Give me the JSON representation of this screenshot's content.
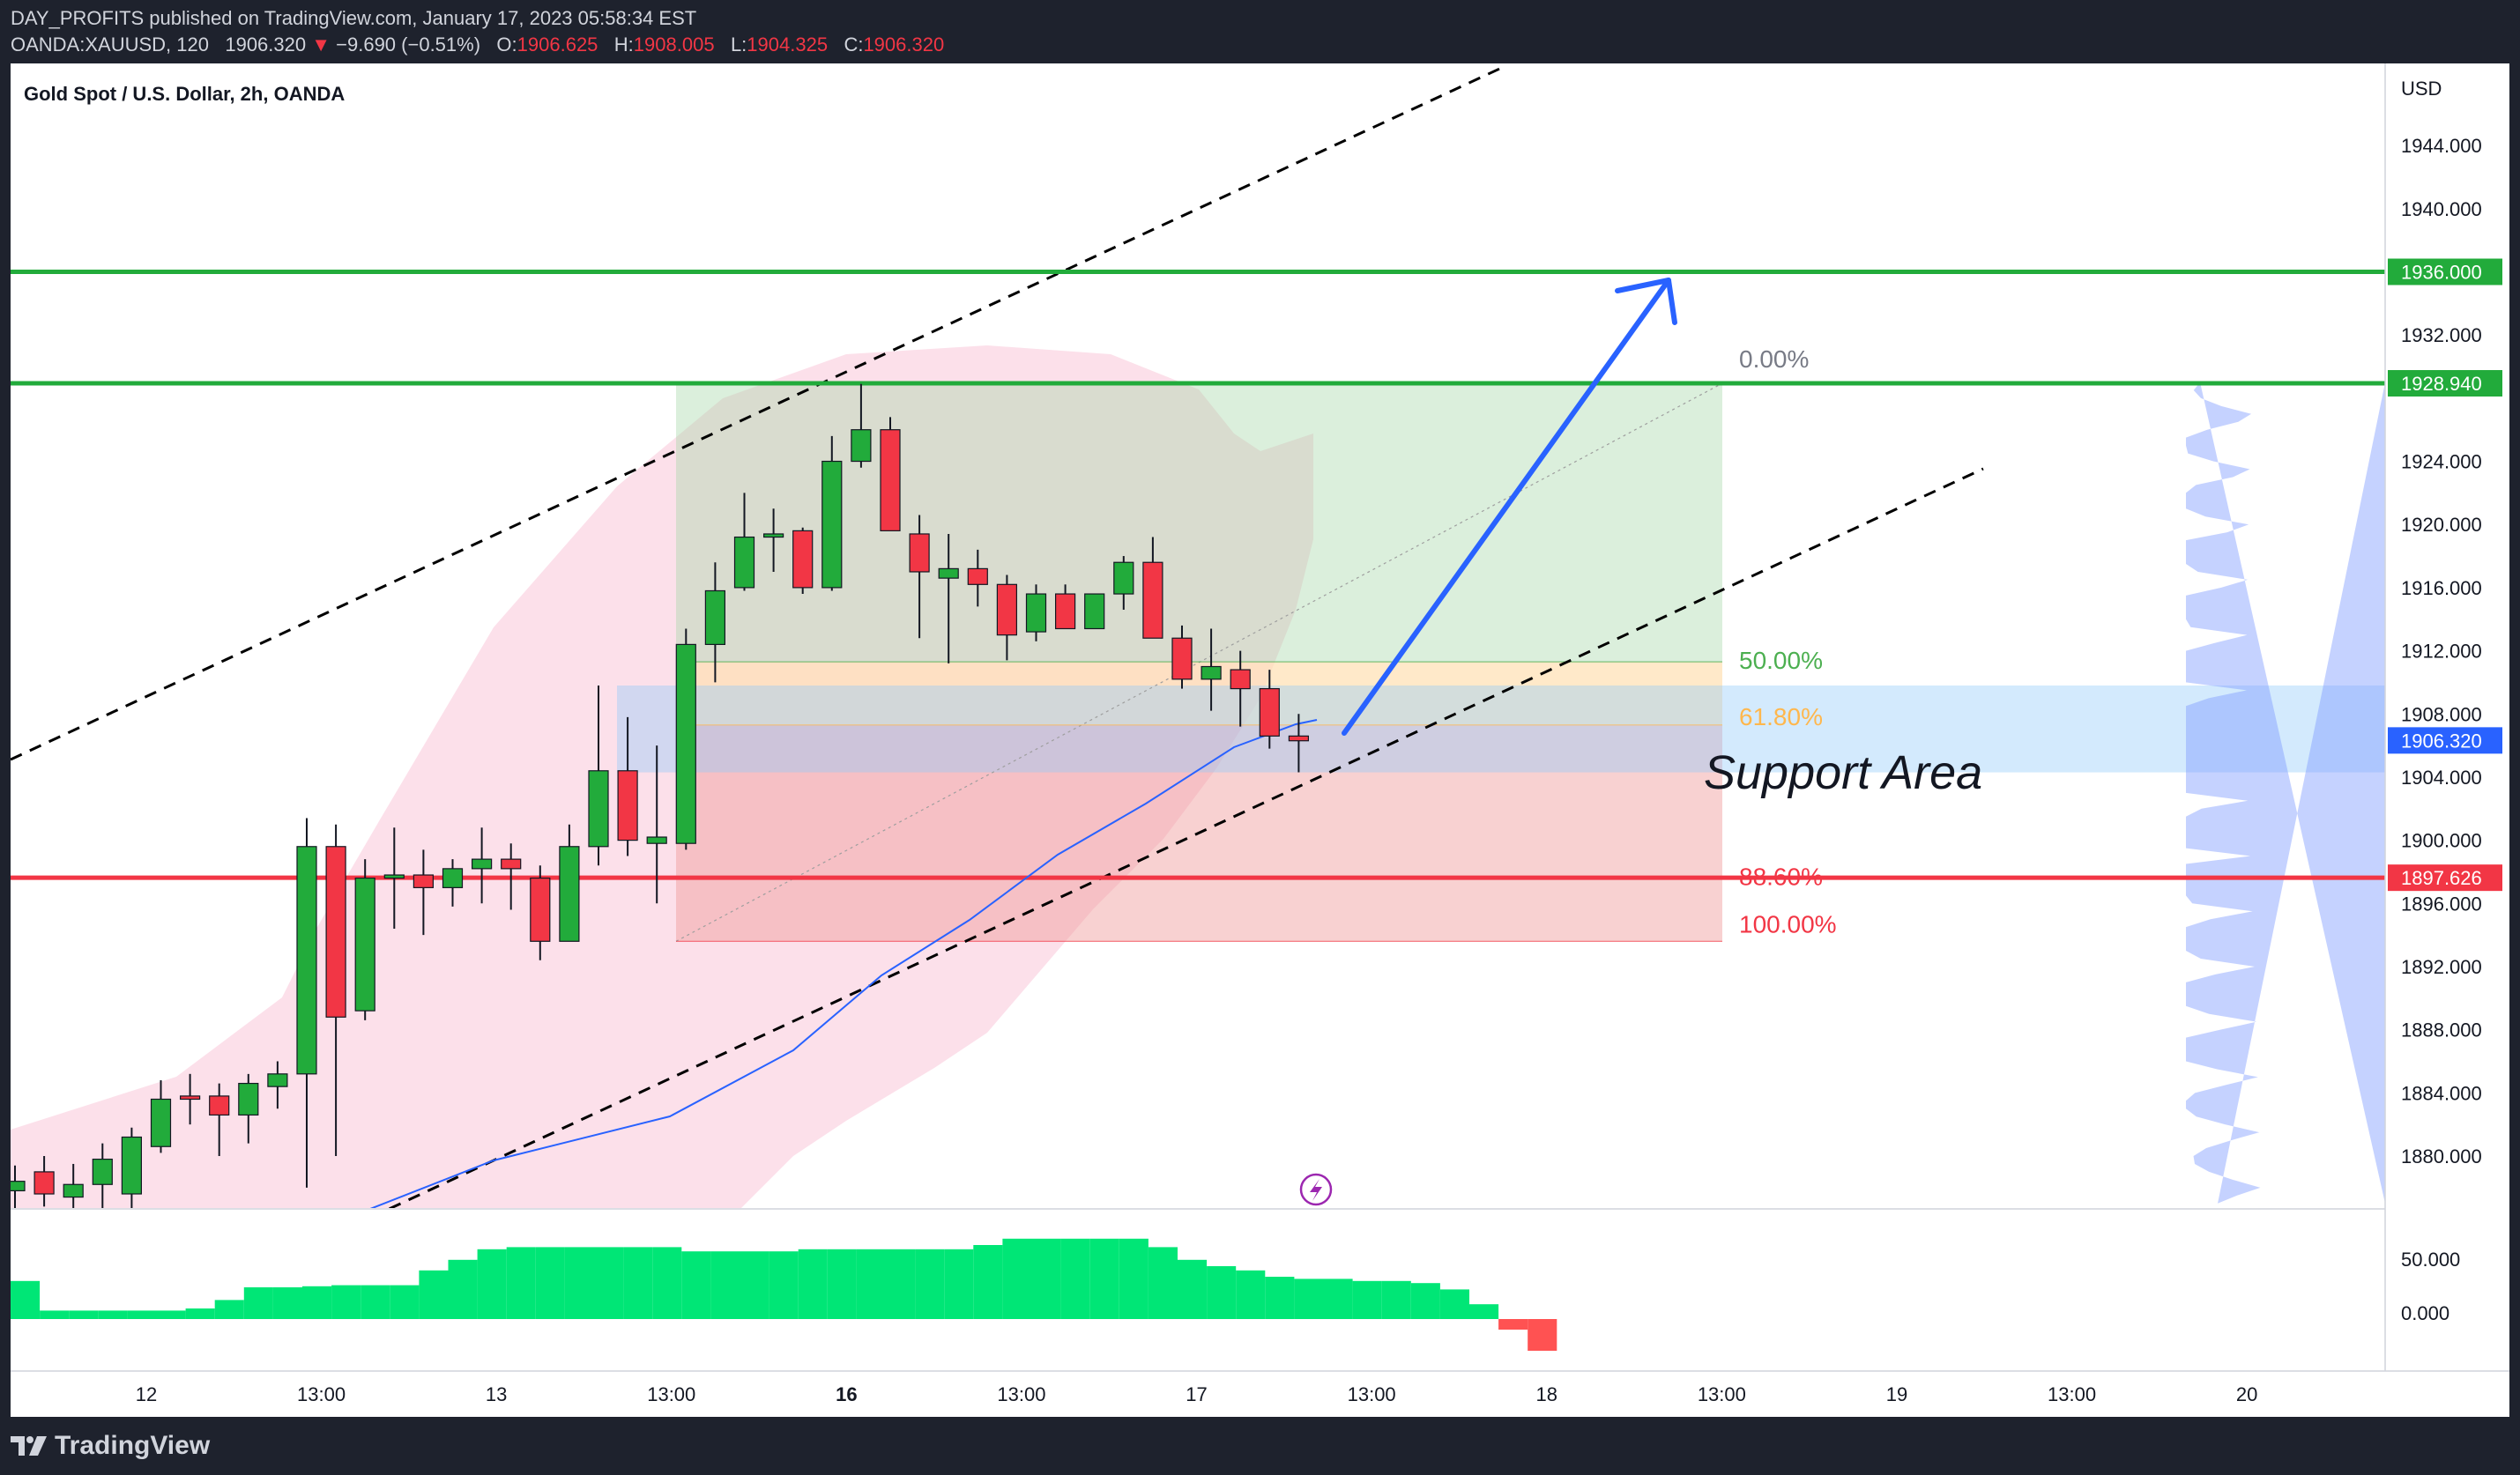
{
  "header": {
    "publisher_line": "DAY_PROFITS published on TradingView.com, January 17, 2023 05:58:34 EST",
    "symbol": "OANDA:XAUUSD, 120",
    "last": "1906.320",
    "change": "−9.690 (−0.51%)",
    "o_label": "O:",
    "o_value": "1906.625",
    "h_label": "H:",
    "h_value": "1908.005",
    "l_label": "L:",
    "l_value": "1904.325",
    "c_label": "C:",
    "c_value": "1906.320"
  },
  "footer": {
    "brand": "TradingView"
  },
  "chart_data": {
    "type": "candlestick",
    "title": "Gold Spot / U.S. Dollar, 2h, OANDA",
    "currency": "USD",
    "y_ticks": [
      "1944.000",
      "1940.000",
      "1932.000",
      "1924.000",
      "1920.000",
      "1916.000",
      "1912.000",
      "1908.000",
      "1904.000",
      "1900.000",
      "1896.000",
      "1892.000",
      "1888.000",
      "1884.000",
      "1880.000"
    ],
    "x_ticks": [
      {
        "label": "12",
        "bold": false,
        "idx": 4.5
      },
      {
        "label": "13:00",
        "bold": false,
        "idx": 10.5
      },
      {
        "label": "13",
        "bold": false,
        "idx": 16.5
      },
      {
        "label": "13:00",
        "bold": false,
        "idx": 22.5
      },
      {
        "label": "16",
        "bold": true,
        "idx": 28.5
      },
      {
        "label": "13:00",
        "bold": false,
        "idx": 34.5
      },
      {
        "label": "17",
        "bold": false,
        "idx": 40.5
      },
      {
        "label": "13:00",
        "bold": false,
        "idx": 46.5
      },
      {
        "label": "18",
        "bold": false,
        "idx": 52.5
      },
      {
        "label": "13:00",
        "bold": false,
        "idx": 58.5
      },
      {
        "label": "19",
        "bold": false,
        "idx": 64.5
      },
      {
        "label": "13:00",
        "bold": false,
        "idx": 70.5
      },
      {
        "label": "20",
        "bold": false,
        "idx": 76.5
      }
    ],
    "price_labels": [
      {
        "value": "1936.000",
        "color": "#22ab3b",
        "price": 1936.0
      },
      {
        "value": "1928.940",
        "color": "#22ab3b",
        "price": 1928.94
      },
      {
        "value": "1906.320",
        "color": "#2962ff",
        "price": 1906.32
      },
      {
        "value": "1897.626",
        "color": "#f23645",
        "price": 1897.626
      }
    ],
    "horizontal_levels": [
      {
        "price": 1936.0,
        "color": "#22ab3b"
      },
      {
        "price": 1928.94,
        "color": "#22ab3b"
      },
      {
        "price": 1897.626,
        "color": "#f23645"
      }
    ],
    "fib_levels": [
      {
        "label": "0.00%",
        "price": 1928.94,
        "color": "#787b86"
      },
      {
        "label": "50.00%",
        "price": 1911.3,
        "color": "#4caf50"
      },
      {
        "label": "61.80%",
        "price": 1907.3,
        "color": "#ffb74d"
      },
      {
        "label": "88.60%",
        "price": 1897.6,
        "color": "#f23645"
      },
      {
        "label": "100.00%",
        "price": 1893.6,
        "color": "#f23645"
      }
    ],
    "annotation": "Support Area",
    "candles": [
      {
        "o": 1877.8,
        "h": 1879.4,
        "l": 1876.5,
        "c": 1878.4
      },
      {
        "o": 1879.0,
        "h": 1880.0,
        "l": 1876.8,
        "c": 1877.6
      },
      {
        "o": 1877.4,
        "h": 1879.5,
        "l": 1876.0,
        "c": 1878.2
      },
      {
        "o": 1878.2,
        "h": 1880.8,
        "l": 1876.0,
        "c": 1879.8
      },
      {
        "o": 1877.6,
        "h": 1881.8,
        "l": 1876.0,
        "c": 1881.2
      },
      {
        "o": 1880.6,
        "h": 1884.8,
        "l": 1880.2,
        "c": 1883.6
      },
      {
        "o": 1883.8,
        "h": 1885.2,
        "l": 1882.0,
        "c": 1883.6
      },
      {
        "o": 1883.8,
        "h": 1884.6,
        "l": 1880.0,
        "c": 1882.6
      },
      {
        "o": 1882.6,
        "h": 1885.2,
        "l": 1880.8,
        "c": 1884.6
      },
      {
        "o": 1884.4,
        "h": 1886.0,
        "l": 1883.0,
        "c": 1885.2
      },
      {
        "o": 1885.2,
        "h": 1901.4,
        "l": 1878.0,
        "c": 1899.6
      },
      {
        "o": 1899.6,
        "h": 1901.0,
        "l": 1880.0,
        "c": 1888.8
      },
      {
        "o": 1889.2,
        "h": 1898.8,
        "l": 1888.6,
        "c": 1897.6
      },
      {
        "o": 1897.6,
        "h": 1900.8,
        "l": 1894.4,
        "c": 1897.8
      },
      {
        "o": 1897.8,
        "h": 1899.4,
        "l": 1894.0,
        "c": 1897.0
      },
      {
        "o": 1897.0,
        "h": 1898.8,
        "l": 1895.8,
        "c": 1898.2
      },
      {
        "o": 1898.2,
        "h": 1900.8,
        "l": 1896.0,
        "c": 1898.8
      },
      {
        "o": 1898.8,
        "h": 1899.8,
        "l": 1895.6,
        "c": 1898.2
      },
      {
        "o": 1897.6,
        "h": 1898.4,
        "l": 1892.4,
        "c": 1893.6
      },
      {
        "o": 1893.6,
        "h": 1901.0,
        "l": 1893.6,
        "c": 1899.6
      },
      {
        "o": 1899.6,
        "h": 1909.8,
        "l": 1898.4,
        "c": 1904.4
      },
      {
        "o": 1904.4,
        "h": 1907.8,
        "l": 1899.0,
        "c": 1900.0
      },
      {
        "o": 1899.8,
        "h": 1906.0,
        "l": 1896.0,
        "c": 1900.2
      },
      {
        "o": 1899.8,
        "h": 1913.4,
        "l": 1899.4,
        "c": 1912.4
      },
      {
        "o": 1912.4,
        "h": 1917.6,
        "l": 1910.0,
        "c": 1915.8
      },
      {
        "o": 1916.0,
        "h": 1922.0,
        "l": 1915.8,
        "c": 1919.2
      },
      {
        "o": 1919.2,
        "h": 1921.0,
        "l": 1917.0,
        "c": 1919.4
      },
      {
        "o": 1919.6,
        "h": 1919.8,
        "l": 1915.6,
        "c": 1916.0
      },
      {
        "o": 1916.0,
        "h": 1925.6,
        "l": 1915.8,
        "c": 1924.0
      },
      {
        "o": 1924.0,
        "h": 1928.9,
        "l": 1923.6,
        "c": 1926.0
      },
      {
        "o": 1926.0,
        "h": 1926.8,
        "l": 1919.6,
        "c": 1919.6
      },
      {
        "o": 1919.4,
        "h": 1920.6,
        "l": 1912.8,
        "c": 1917.0
      },
      {
        "o": 1916.6,
        "h": 1919.4,
        "l": 1911.2,
        "c": 1917.2
      },
      {
        "o": 1917.2,
        "h": 1918.4,
        "l": 1914.8,
        "c": 1916.2
      },
      {
        "o": 1916.2,
        "h": 1916.8,
        "l": 1911.4,
        "c": 1913.0
      },
      {
        "o": 1913.2,
        "h": 1916.2,
        "l": 1912.6,
        "c": 1915.6
      },
      {
        "o": 1915.6,
        "h": 1916.2,
        "l": 1913.4,
        "c": 1913.4
      },
      {
        "o": 1913.4,
        "h": 1915.6,
        "l": 1913.4,
        "c": 1915.6
      },
      {
        "o": 1915.6,
        "h": 1918.0,
        "l": 1914.6,
        "c": 1917.6
      },
      {
        "o": 1917.6,
        "h": 1919.2,
        "l": 1912.8,
        "c": 1912.8
      },
      {
        "o": 1912.8,
        "h": 1913.6,
        "l": 1909.6,
        "c": 1910.2
      },
      {
        "o": 1910.2,
        "h": 1913.4,
        "l": 1908.2,
        "c": 1911.0
      },
      {
        "o": 1910.8,
        "h": 1912.0,
        "l": 1907.2,
        "c": 1909.6
      },
      {
        "o": 1909.6,
        "h": 1910.8,
        "l": 1905.8,
        "c": 1906.6
      },
      {
        "o": 1906.6,
        "h": 1908.0,
        "l": 1904.3,
        "c": 1906.3
      }
    ],
    "ema_values": [
      null,
      null,
      null,
      null,
      null,
      null,
      null,
      null,
      null,
      null,
      null,
      null,
      null,
      null,
      null,
      null,
      null,
      null,
      null,
      null,
      null,
      null,
      null,
      null,
      null,
      null,
      null,
      null,
      null,
      null,
      null,
      null,
      null,
      null,
      null,
      null,
      null,
      null,
      null,
      null,
      null,
      null,
      null,
      null,
      null
    ],
    "oscillator": {
      "y_ticks": [
        "50.000",
        "0.000"
      ],
      "values": [
        36,
        8,
        8,
        8,
        8,
        8,
        10,
        18,
        30,
        30,
        31,
        32,
        32,
        32,
        46,
        56,
        66,
        68,
        68,
        68,
        68,
        68,
        68,
        64,
        64,
        64,
        64,
        66,
        66,
        66,
        66,
        66,
        66,
        70,
        76,
        76,
        76,
        76,
        76,
        68,
        56,
        50,
        46,
        40,
        38,
        38,
        36,
        36,
        34,
        28,
        14,
        -10,
        -30
      ]
    }
  }
}
